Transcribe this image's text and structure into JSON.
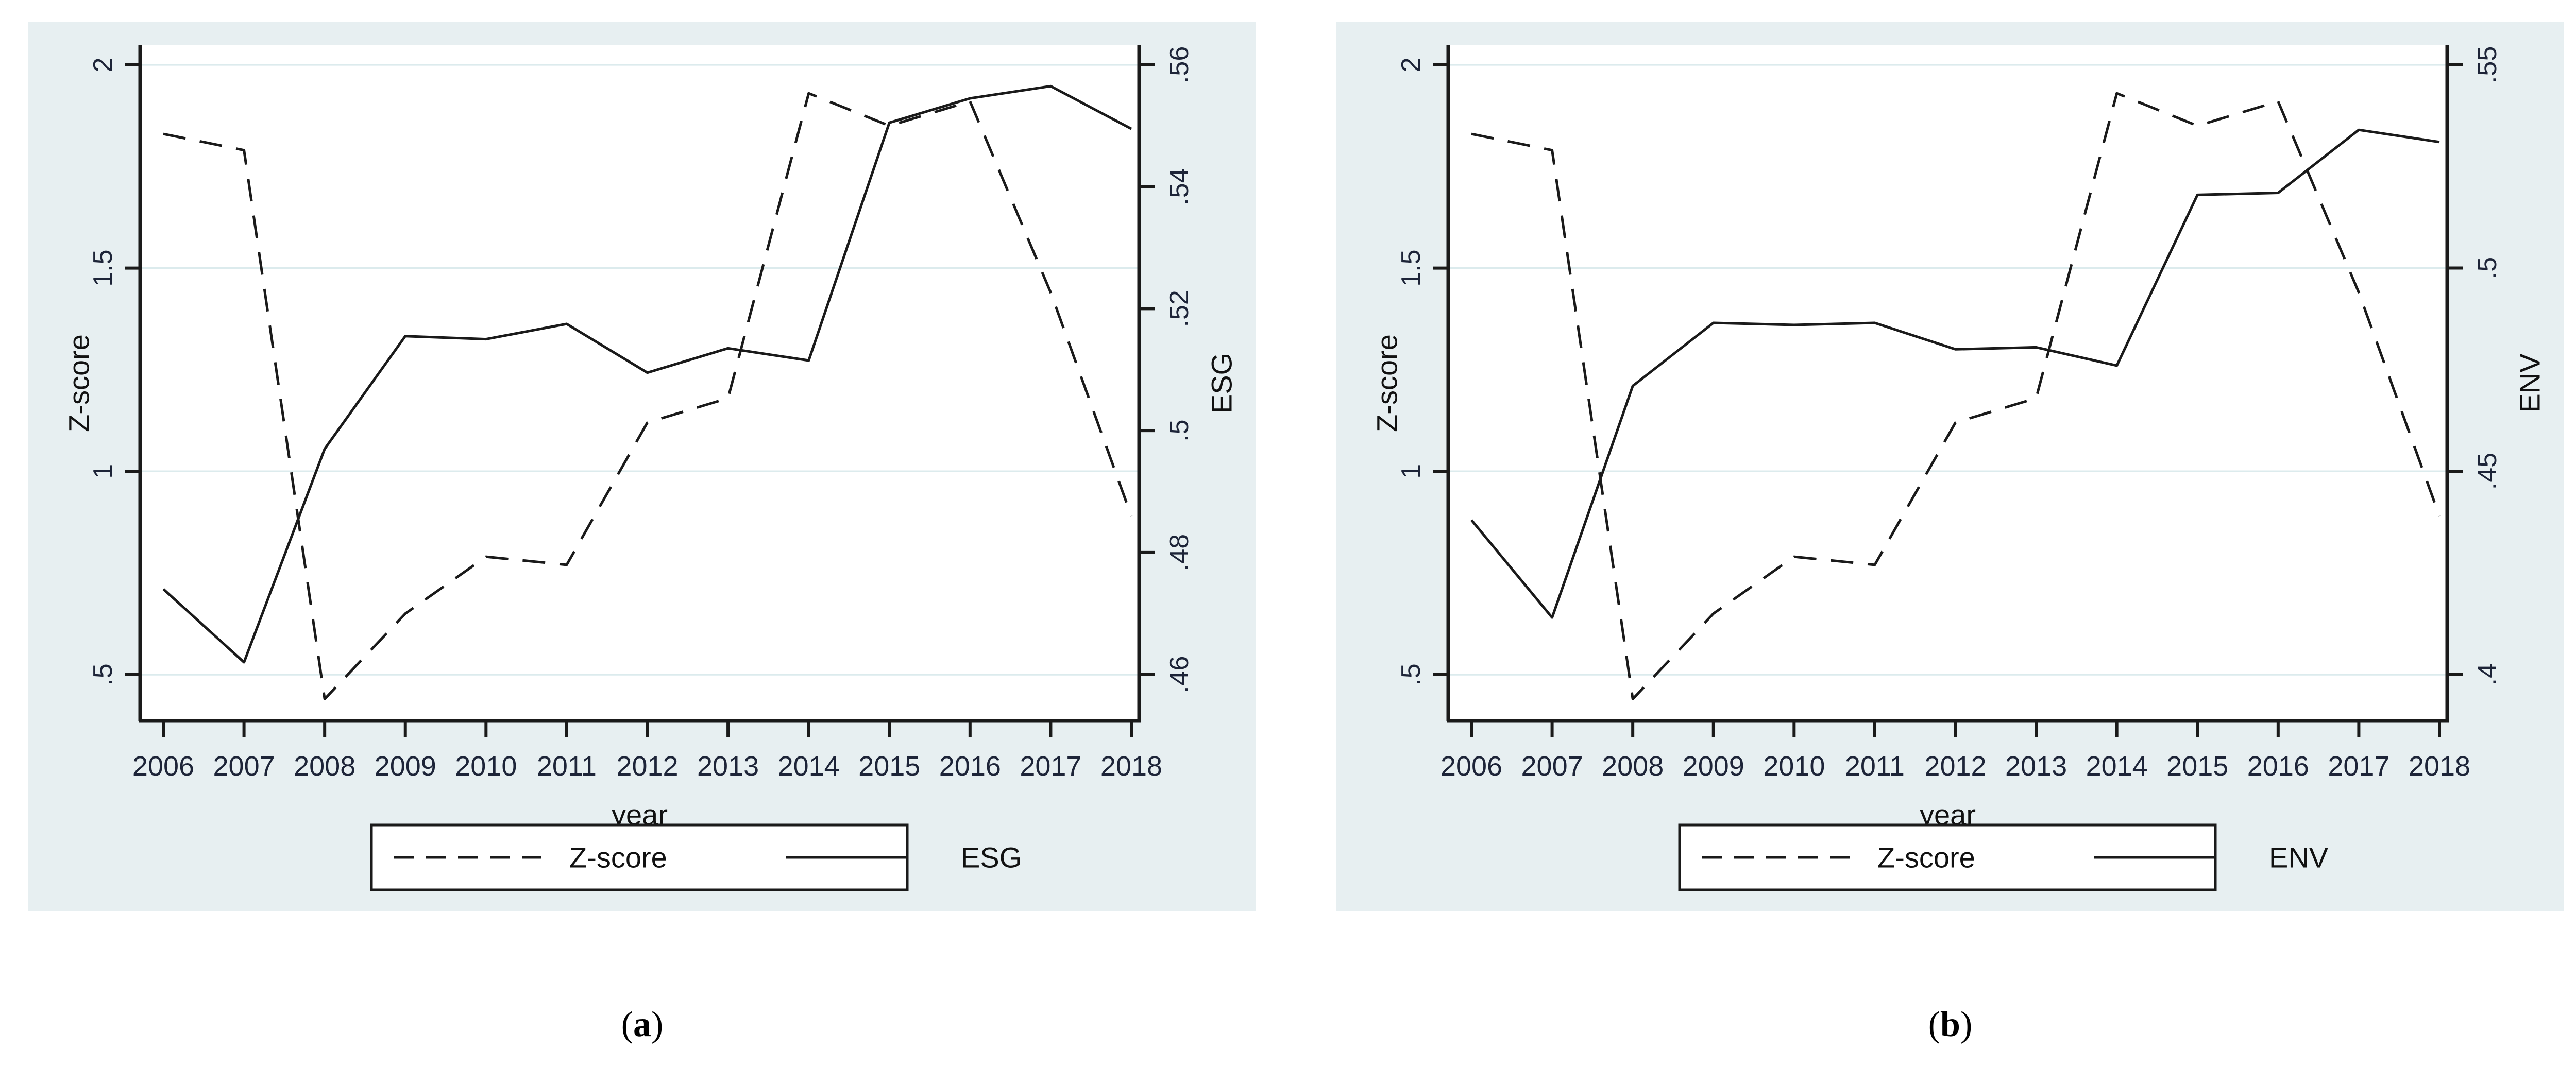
{
  "page": {
    "background": "#ffffff",
    "panel_background": "#e7eff1",
    "plot_background": "#ffffff",
    "gridline_color": "#dcebed",
    "axis_color": "#1a1a1a",
    "tick_label_color": "#1d2438",
    "line_color": "#1a1a1a"
  },
  "captions": {
    "open": "(",
    "close": ")",
    "a": "a",
    "b": "b"
  },
  "chart_data": [
    {
      "type": "line",
      "x": [
        2006,
        2007,
        2008,
        2009,
        2010,
        2011,
        2012,
        2013,
        2014,
        2015,
        2016,
        2017,
        2018
      ],
      "x_axis": {
        "label": "year",
        "tick_labels": [
          "2006",
          "2007",
          "2008",
          "2009",
          "2010",
          "2011",
          "2012",
          "2013",
          "2014",
          "2015",
          "2016",
          "2017",
          "2018"
        ]
      },
      "left_axis": {
        "label": "Z-score",
        "ticks": [
          2,
          1.5,
          1,
          0.5
        ],
        "tick_labels": [
          "2",
          "1.5",
          "1",
          ".5"
        ],
        "range_top": 2.048,
        "range_bottom": 0.386,
        "grid": true
      },
      "right_axis": {
        "label": "ESG",
        "ticks": [
          0.56,
          0.54,
          0.52,
          0.5,
          0.48,
          0.46
        ],
        "tick_labels": [
          ".56",
          ".54",
          ".52",
          ".5",
          ".48",
          ".46"
        ],
        "range_top": 0.5632,
        "range_bottom": 0.45237
      },
      "series": [
        {
          "name": "Z-score",
          "axis": "left",
          "line": "dashed",
          "values": [
            1.83,
            1.79,
            0.44,
            0.65,
            0.79,
            0.77,
            1.12,
            1.18,
            1.93,
            1.85,
            1.91,
            1.44,
            0.89
          ]
        },
        {
          "name": "ESG",
          "axis": "right",
          "line": "solid",
          "values": [
            0.474,
            0.462,
            0.497,
            0.5155,
            0.515,
            0.5175,
            0.5095,
            0.5135,
            0.5115,
            0.5505,
            0.5545,
            0.5565,
            0.5495
          ]
        }
      ],
      "legend": [
        "Z-score",
        "ESG"
      ]
    },
    {
      "type": "line",
      "x": [
        2006,
        2007,
        2008,
        2009,
        2010,
        2011,
        2012,
        2013,
        2014,
        2015,
        2016,
        2017,
        2018
      ],
      "x_axis": {
        "label": "year",
        "tick_labels": [
          "2006",
          "2007",
          "2008",
          "2009",
          "2010",
          "2011",
          "2012",
          "2013",
          "2014",
          "2015",
          "2016",
          "2017",
          "2018"
        ]
      },
      "left_axis": {
        "label": "Z-score",
        "ticks": [
          2,
          1.5,
          1,
          0.5
        ],
        "tick_labels": [
          "2",
          "1.5",
          "1",
          ".5"
        ],
        "range_top": 2.048,
        "range_bottom": 0.386,
        "grid": true
      },
      "right_axis": {
        "label": "ENV",
        "ticks": [
          0.55,
          0.5,
          0.45,
          0.4
        ],
        "tick_labels": [
          ".55",
          ".5",
          ".45",
          ".4"
        ],
        "range_top": 0.5548,
        "range_bottom": 0.38856
      },
      "series": [
        {
          "name": "Z-score",
          "axis": "left",
          "line": "dashed",
          "values": [
            1.83,
            1.79,
            0.44,
            0.65,
            0.79,
            0.77,
            1.12,
            1.18,
            1.93,
            1.85,
            1.91,
            1.44,
            0.89
          ]
        },
        {
          "name": "ENV",
          "axis": "right",
          "line": "solid",
          "values": [
            0.438,
            0.414,
            0.471,
            0.4865,
            0.486,
            0.4865,
            0.48,
            0.4805,
            0.476,
            0.518,
            0.5185,
            0.534,
            0.531
          ]
        }
      ],
      "legend": [
        "Z-score",
        "ENV"
      ]
    }
  ]
}
